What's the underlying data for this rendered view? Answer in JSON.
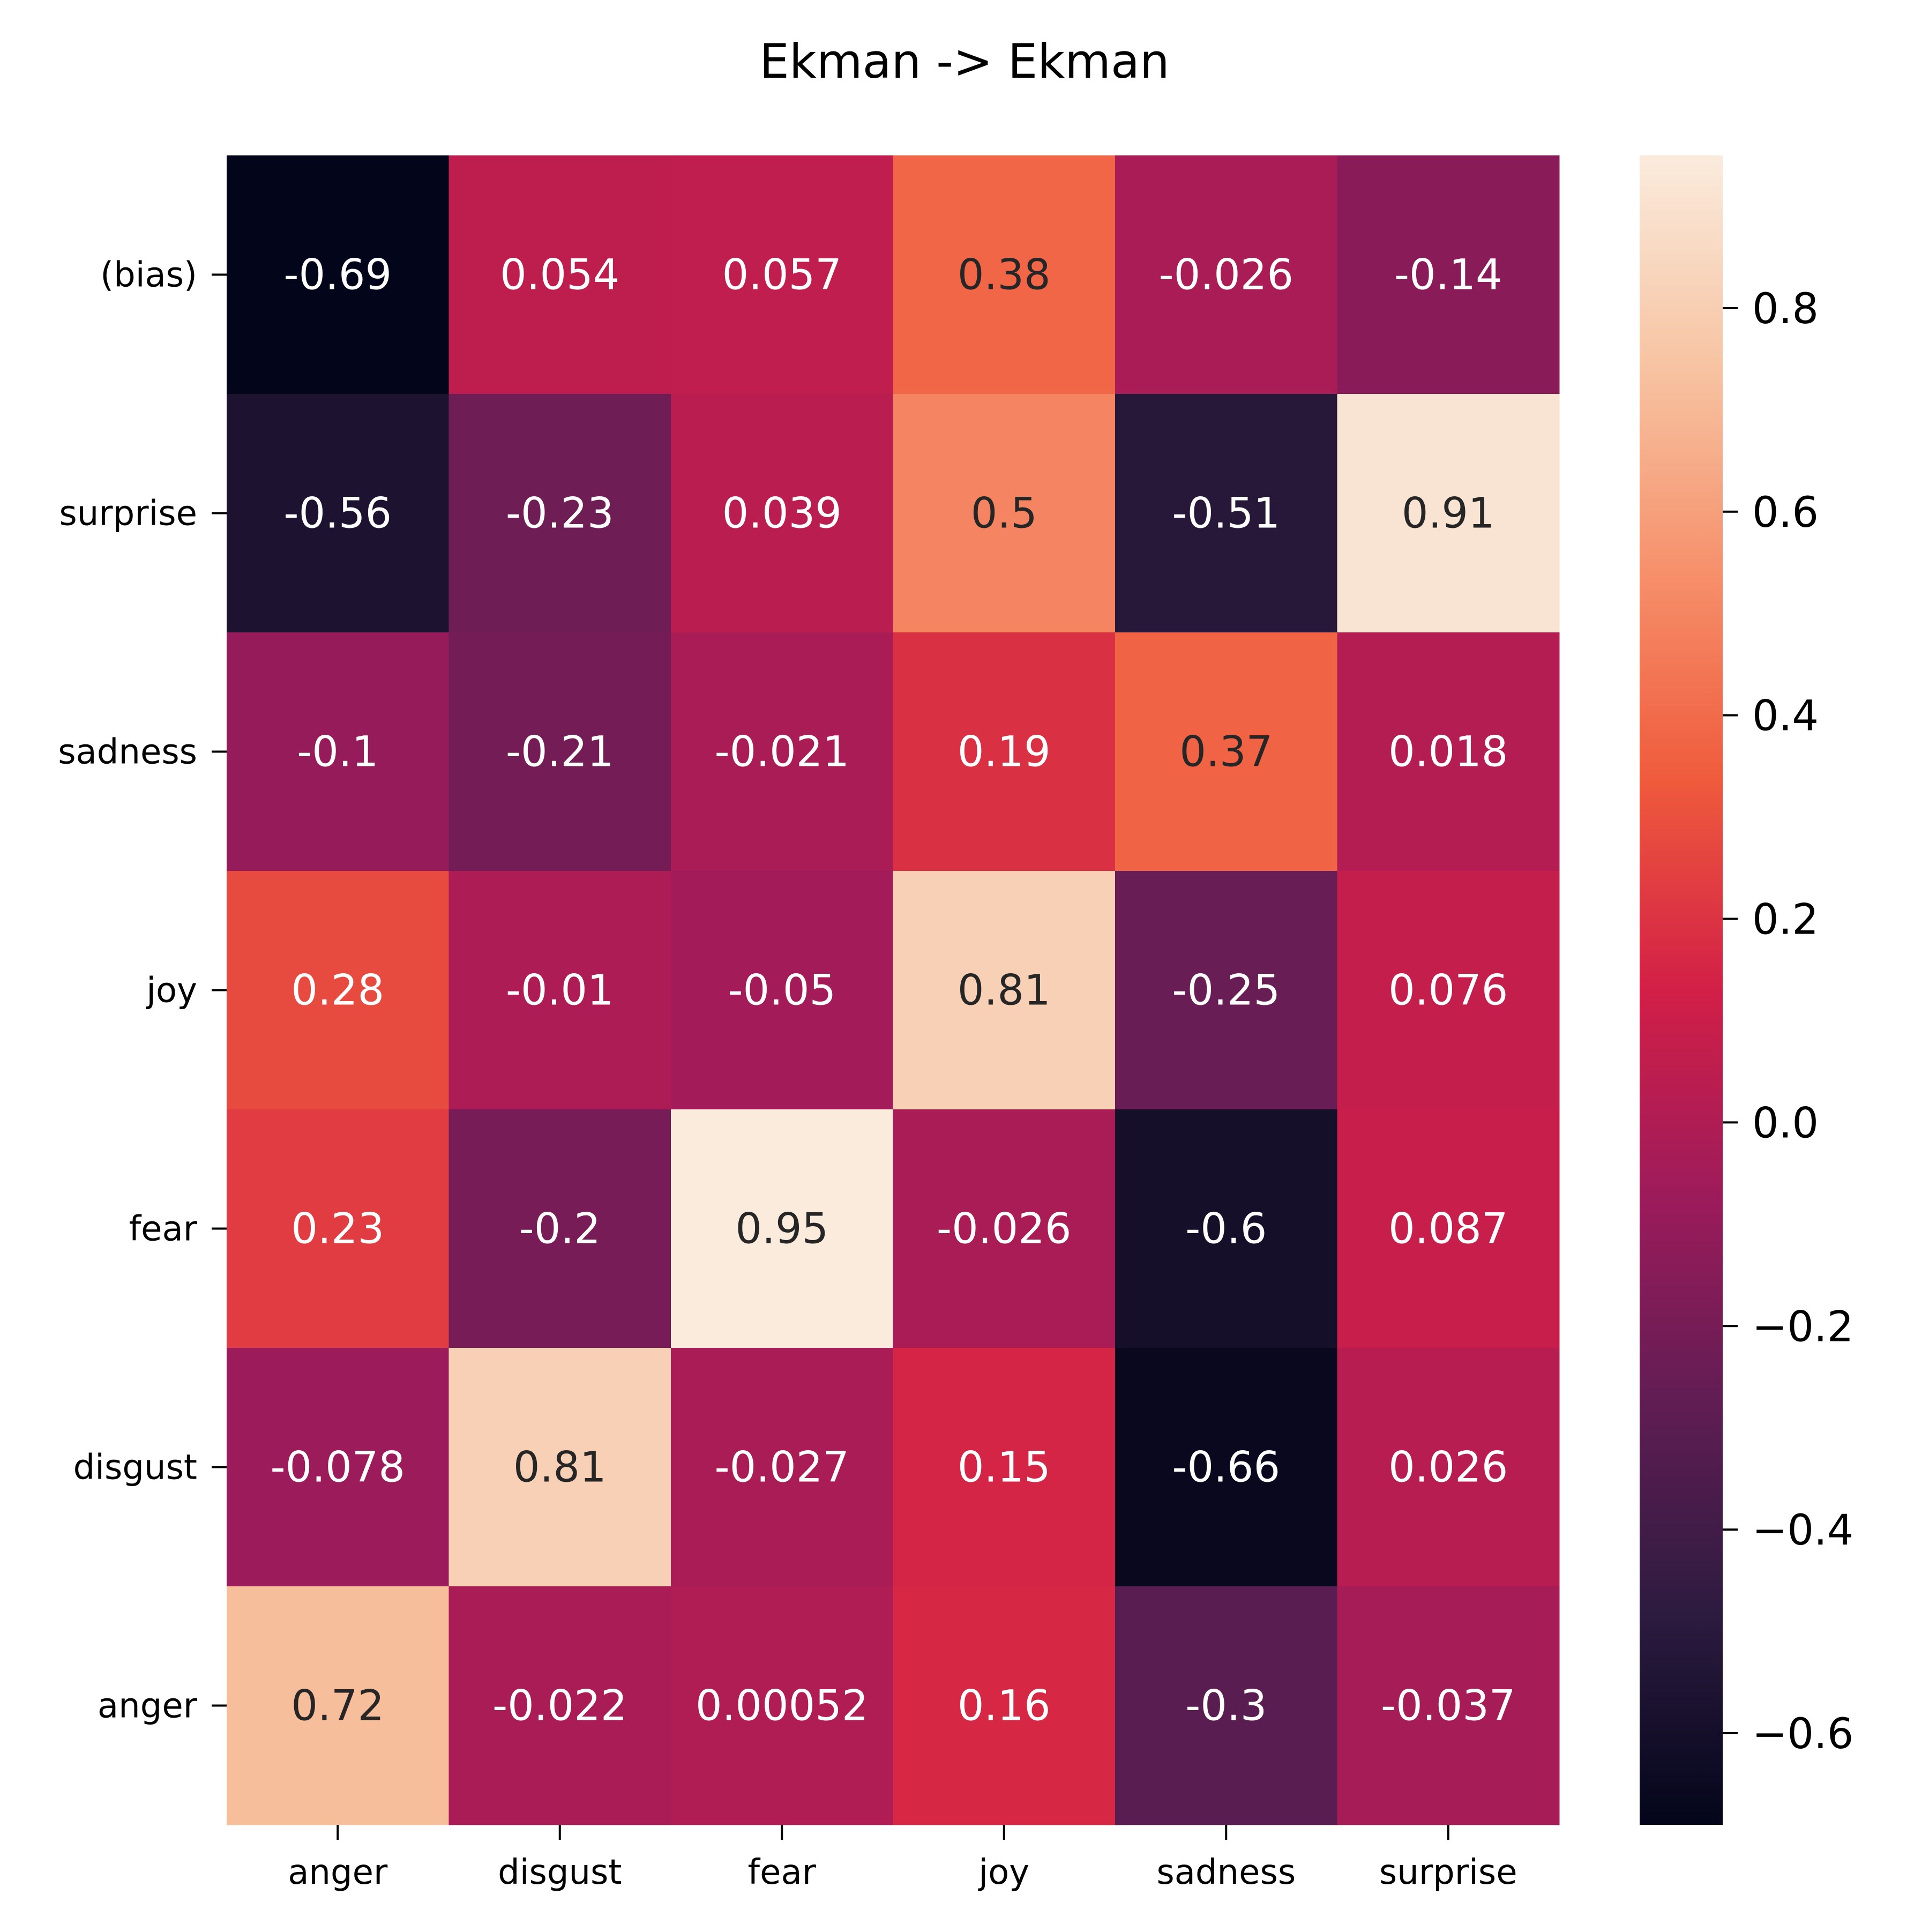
{
  "chart_data": {
    "type": "heatmap",
    "title": "Ekman -> Ekman",
    "xlabel": "",
    "ylabel": "",
    "x_categories": [
      "anger",
      "disgust",
      "fear",
      "joy",
      "sadness",
      "surprise"
    ],
    "y_categories": [
      "(bias)",
      "surprise",
      "sadness",
      "joy",
      "fear",
      "disgust",
      "anger"
    ],
    "values": [
      [
        -0.69,
        0.054,
        0.057,
        0.38,
        -0.026,
        -0.14
      ],
      [
        -0.56,
        -0.23,
        0.039,
        0.5,
        -0.51,
        0.91
      ],
      [
        -0.1,
        -0.21,
        -0.021,
        0.19,
        0.37,
        0.018
      ],
      [
        0.28,
        -0.01,
        -0.05,
        0.81,
        -0.25,
        0.076
      ],
      [
        0.23,
        -0.2,
        0.95,
        -0.026,
        -0.6,
        0.087
      ],
      [
        -0.078,
        0.81,
        -0.027,
        0.15,
        -0.66,
        0.026
      ],
      [
        0.72,
        -0.022,
        0.00052,
        0.16,
        -0.3,
        -0.037
      ]
    ],
    "value_labels": [
      [
        "-0.69",
        "0.054",
        "0.057",
        "0.38",
        "-0.026",
        "-0.14"
      ],
      [
        "-0.56",
        "-0.23",
        "0.039",
        "0.5",
        "-0.51",
        "0.91"
      ],
      [
        "-0.1",
        "-0.21",
        "-0.021",
        "0.19",
        "0.37",
        "0.018"
      ],
      [
        "0.28",
        "-0.01",
        "-0.05",
        "0.81",
        "-0.25",
        "0.076"
      ],
      [
        "0.23",
        "-0.2",
        "0.95",
        "-0.026",
        "-0.6",
        "0.087"
      ],
      [
        "-0.078",
        "0.81",
        "-0.027",
        "0.15",
        "-0.66",
        "0.026"
      ],
      [
        "0.72",
        "-0.022",
        "0.00052",
        "0.16",
        "-0.3",
        "-0.037"
      ]
    ],
    "colorbar": {
      "vmin": -0.69,
      "vmax": 0.95,
      "ticks": [
        0.8,
        0.6,
        0.4,
        0.2,
        0.0,
        -0.2,
        -0.4,
        -0.6
      ],
      "tick_labels": [
        "0.8",
        "0.6",
        "0.4",
        "0.2",
        "0.0",
        "−0.2",
        "−0.4",
        "−0.6"
      ],
      "colormap": "rocket",
      "colormap_stops": [
        "#03051a",
        "#2c1b3f",
        "#5f1d53",
        "#9c1b5b",
        "#d21f47",
        "#ef5a3c",
        "#f6906b",
        "#f7c4a3",
        "#faebdd"
      ]
    },
    "grid": false
  }
}
